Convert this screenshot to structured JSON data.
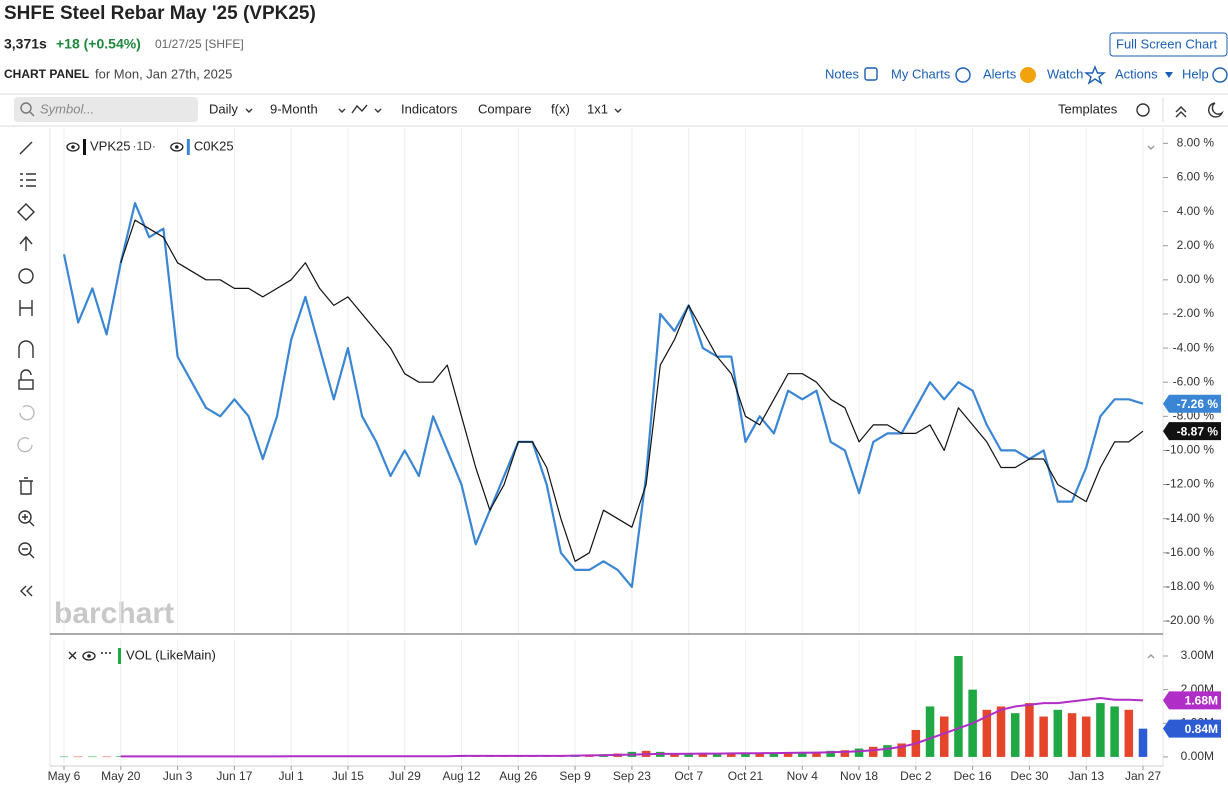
{
  "header": {
    "title": "SHFE Steel Rebar May '25 (VPK25)",
    "price": "3,371s",
    "change": "+18 (+0.54%)",
    "date_exchange": "01/27/25 [SHFE]",
    "full_screen": "Full Screen Chart",
    "panel_label": "CHART PANEL",
    "panel_date": "for Mon, Jan 27th, 2025"
  },
  "nav": [
    "Notes",
    "My Charts",
    "Alerts",
    "Watch",
    "Actions",
    "Help"
  ],
  "toolbar": {
    "symbol_placeholder": "Symbol...",
    "items": [
      "Daily",
      "9-Month",
      "Indicators",
      "Compare",
      "f(x)",
      "1x1"
    ],
    "templates": "Templates"
  },
  "watermark": "barchart",
  "chart_data": [
    {
      "type": "line",
      "interval": "·1D·",
      "categories": [
        "May 6",
        null,
        null,
        null,
        "May 20",
        null,
        null,
        null,
        "Jun 3",
        null,
        null,
        null,
        "Jun 17",
        null,
        null,
        null,
        "Jul 1",
        null,
        null,
        null,
        "Jul 15",
        null,
        null,
        null,
        "Jul 29",
        null,
        null,
        null,
        "Aug 12",
        null,
        null,
        null,
        "Aug 26",
        null,
        null,
        null,
        "Sep 9",
        null,
        null,
        null,
        "Sep 23",
        null,
        null,
        null,
        "Oct 7",
        null,
        null,
        null,
        "Oct 21",
        null,
        null,
        null,
        "Nov 4",
        null,
        null,
        null,
        "Nov 18",
        null,
        null,
        null,
        "Dec 2",
        null,
        null,
        null,
        "Dec 16",
        null,
        null,
        null,
        "Dec 30",
        null,
        null,
        null,
        "Jan 13",
        null,
        null,
        null,
        "Jan 27"
      ],
      "series": [
        {
          "name": "VPK25",
          "color": "#111111",
          "values": [
            null,
            null,
            null,
            null,
            1.0,
            3.5,
            3.0,
            2.5,
            1.0,
            0.5,
            0.0,
            0.0,
            -0.5,
            -0.5,
            -1.0,
            -0.5,
            0.0,
            1.0,
            -0.5,
            -1.5,
            -1.0,
            -2.0,
            -3.0,
            -4.0,
            -5.5,
            -6.0,
            -6.0,
            -5.0,
            -8.0,
            -11.0,
            -13.5,
            -12.0,
            -9.5,
            -9.5,
            -11.0,
            -14.0,
            -16.5,
            -16.0,
            -13.5,
            -14.0,
            -14.5,
            -12.0,
            -5.0,
            -3.5,
            -1.5,
            -3.0,
            -4.5,
            -5.5,
            -8.0,
            -8.5,
            -7.0,
            -5.5,
            -5.5,
            -6.0,
            -7.0,
            -7.5,
            -9.5,
            -8.5,
            -8.5,
            -9.0,
            -9.0,
            -8.5,
            -10.0,
            -7.5,
            -8.5,
            -9.5,
            -11.0,
            -11.0,
            -10.5,
            -10.5,
            -12.0,
            -12.5,
            -13.0,
            -11.0,
            -9.5,
            -9.5,
            -8.87
          ],
          "value_labels": [
            null,
            null,
            null,
            null,
            null,
            null,
            null,
            null,
            null,
            null,
            null,
            null,
            null,
            null,
            null,
            null,
            null,
            null,
            null,
            null,
            null,
            null,
            null,
            null,
            null,
            null,
            null,
            null,
            null,
            null,
            null,
            null,
            null,
            null,
            null,
            null,
            null,
            null,
            null,
            null,
            null,
            null,
            null,
            null,
            null,
            null,
            null,
            null,
            null,
            null,
            null,
            null,
            null,
            null,
            null,
            null,
            null,
            null,
            null,
            null,
            null,
            null,
            null,
            null,
            null,
            null,
            null,
            null,
            null,
            null,
            null,
            null,
            null,
            null,
            null,
            null,
            "-8.87 %"
          ]
        },
        {
          "name": "C0K25",
          "color": "#3a86d4",
          "values": [
            1.5,
            -2.5,
            -0.5,
            -3.2,
            1.0,
            4.5,
            2.5,
            3.0,
            -4.5,
            -6.0,
            -7.5,
            -8.0,
            -7.0,
            -8.0,
            -10.5,
            -8.0,
            -3.5,
            -1.0,
            -4.0,
            -7.0,
            -4.0,
            -8.0,
            -9.5,
            -11.5,
            -10.0,
            -11.5,
            -8.0,
            -10.0,
            -12.0,
            -15.5,
            -13.5,
            -11.5,
            -9.5,
            -9.5,
            -12.0,
            -16.0,
            -17.0,
            -17.0,
            -16.5,
            -17.0,
            -18.0,
            -11.5,
            -2.0,
            -3.0,
            -1.5,
            -4.0,
            -4.5,
            -4.5,
            -9.5,
            -8.0,
            -9.0,
            -6.5,
            -7.0,
            -6.5,
            -9.5,
            -10.0,
            -12.5,
            -9.5,
            -9.0,
            -9.0,
            -7.5,
            -6.0,
            -7.0,
            -6.0,
            -6.5,
            -8.5,
            -10.0,
            -10.0,
            -10.5,
            -10.0,
            -13.0,
            -13.0,
            -11.0,
            -8.0,
            -7.0,
            -7.0,
            -7.26
          ],
          "value_labels": [
            null,
            null,
            null,
            null,
            null,
            null,
            null,
            null,
            null,
            null,
            null,
            null,
            null,
            null,
            null,
            null,
            null,
            null,
            null,
            null,
            null,
            null,
            null,
            null,
            null,
            null,
            null,
            null,
            null,
            null,
            null,
            null,
            null,
            null,
            null,
            null,
            null,
            null,
            null,
            null,
            null,
            null,
            null,
            null,
            null,
            null,
            null,
            null,
            null,
            null,
            null,
            null,
            null,
            null,
            null,
            null,
            null,
            null,
            null,
            null,
            null,
            null,
            null,
            null,
            null,
            null,
            null,
            null,
            null,
            null,
            null,
            null,
            null,
            null,
            null,
            null,
            "-7.26 %"
          ]
        }
      ],
      "ylim": [
        -20.7,
        8.9
      ],
      "yticks": [
        {
          "value": 8,
          "label": "8.00 %"
        },
        {
          "value": 6,
          "label": "6.00 %"
        },
        {
          "value": 4,
          "label": "4.00 %"
        },
        {
          "value": 2,
          "label": "2.00 %"
        },
        {
          "value": 0,
          "label": "0.00 %"
        },
        {
          "value": -2,
          "label": "-2.00 %"
        },
        {
          "value": -4,
          "label": "-4.00 %"
        },
        {
          "value": -6,
          "label": "-6.00 %"
        },
        {
          "value": -8,
          "label": "-8.00 %"
        },
        {
          "value": -10,
          "label": "-10.00 %"
        },
        {
          "value": -12,
          "label": "-12.00 %"
        },
        {
          "value": -14,
          "label": "-14.00 %"
        },
        {
          "value": -16,
          "label": "-16.00 %"
        },
        {
          "value": -18,
          "label": "-18.00 %"
        },
        {
          "value": -20,
          "label": "-20.00 %"
        }
      ],
      "xgrid": true
    },
    {
      "type": "bar",
      "series": [
        {
          "name": "VOL (LikeMain)",
          "color": "#1fa843",
          "colors": [
            "#1fa843",
            "#e5452b",
            "#1fa843",
            "#e5452b",
            "#1fa843",
            "#e5452b",
            "#1fa843",
            "#e5452b",
            "#1fa843",
            "#e5452b",
            "#1fa843",
            "#e5452b",
            "#1fa843",
            "#e5452b",
            "#1fa843",
            "#e5452b",
            "#1fa843",
            "#e5452b",
            "#1fa843",
            "#e5452b",
            "#1fa843",
            "#e5452b",
            "#1fa843",
            "#e5452b",
            "#1fa843",
            "#e5452b",
            "#1fa843",
            "#e5452b",
            "#1fa843",
            "#e5452b",
            "#1fa843",
            "#e5452b",
            "#1fa843",
            "#e5452b",
            "#1fa843",
            "#e5452b",
            "#1fa843",
            "#e5452b",
            "#1fa843",
            "#e5452b",
            "#1fa843",
            "#e5452b",
            "#1fa843",
            "#e5452b",
            "#1fa843",
            "#e5452b",
            "#1fa843",
            "#e5452b",
            "#1fa843",
            "#e5452b",
            "#1fa843",
            "#e5452b",
            "#1fa843",
            "#e5452b",
            "#1fa843",
            "#e5452b",
            "#1fa843",
            "#e5452b",
            "#1fa843",
            "#e5452b",
            "#e5452b",
            "#1fa843",
            "#e5452b",
            "#1fa843",
            "#1fa843",
            "#e5452b",
            "#e5452b",
            "#1fa843",
            "#e5452b",
            "#e5452b",
            "#1fa843",
            "#e5452b",
            "#e5452b",
            "#1fa843",
            "#1fa843",
            "#e5452b",
            "#2d5bd3"
          ],
          "values": [
            10000,
            10000,
            10000,
            10000,
            20000,
            20000,
            20000,
            20000,
            20000,
            20000,
            20000,
            20000,
            20000,
            20000,
            20000,
            20000,
            30000,
            30000,
            30000,
            30000,
            30000,
            30000,
            30000,
            30000,
            30000,
            30000,
            30000,
            30000,
            40000,
            40000,
            40000,
            40000,
            40000,
            40000,
            40000,
            40000,
            60000,
            70000,
            80000,
            100000,
            150000,
            180000,
            150000,
            100000,
            100000,
            120000,
            100000,
            100000,
            120000,
            100000,
            120000,
            130000,
            150000,
            150000,
            180000,
            200000,
            250000,
            300000,
            350000,
            400000,
            800000,
            1500000,
            1200000,
            3000000,
            2000000,
            1400000,
            1500000,
            1300000,
            1600000,
            1200000,
            1400000,
            1300000,
            1200000,
            1600000,
            1500000,
            1400000,
            840000
          ],
          "value_labels": [
            null,
            null,
            null,
            null,
            null,
            null,
            null,
            null,
            null,
            null,
            null,
            null,
            null,
            null,
            null,
            null,
            null,
            null,
            null,
            null,
            null,
            null,
            null,
            null,
            null,
            null,
            null,
            null,
            null,
            null,
            null,
            null,
            null,
            null,
            null,
            null,
            null,
            null,
            null,
            null,
            null,
            null,
            null,
            null,
            null,
            null,
            null,
            null,
            null,
            null,
            null,
            null,
            null,
            null,
            null,
            null,
            null,
            null,
            null,
            null,
            null,
            null,
            null,
            null,
            null,
            null,
            null,
            null,
            null,
            null,
            null,
            null,
            null,
            null,
            null,
            null,
            "0.84M"
          ],
          "label_color": "#2d5bd3"
        },
        {
          "type": "line",
          "color": "#b02ec7",
          "values": [
            null,
            null,
            null,
            null,
            15000,
            15000,
            15000,
            15000,
            15000,
            15000,
            15000,
            15000,
            15000,
            15000,
            15000,
            15000,
            20000,
            20000,
            20000,
            20000,
            20000,
            20000,
            20000,
            20000,
            20000,
            20000,
            20000,
            20000,
            30000,
            30000,
            30000,
            30000,
            30000,
            30000,
            30000,
            30000,
            40000,
            45000,
            50000,
            60000,
            70000,
            80000,
            90000,
            90000,
            95000,
            100000,
            100000,
            105000,
            110000,
            110000,
            115000,
            120000,
            125000,
            130000,
            140000,
            150000,
            170000,
            200000,
            240000,
            300000,
            400000,
            550000,
            700000,
            850000,
            1000000,
            1200000,
            1400000,
            1500000,
            1550000,
            1600000,
            1600000,
            1650000,
            1700000,
            1750000,
            1700000,
            1700000,
            1680000
          ],
          "value_labels": [
            null,
            null,
            null,
            null,
            null,
            null,
            null,
            null,
            null,
            null,
            null,
            null,
            null,
            null,
            null,
            null,
            null,
            null,
            null,
            null,
            null,
            null,
            null,
            null,
            null,
            null,
            null,
            null,
            null,
            null,
            null,
            null,
            null,
            null,
            null,
            null,
            null,
            null,
            null,
            null,
            null,
            null,
            null,
            null,
            null,
            null,
            null,
            null,
            null,
            null,
            null,
            null,
            null,
            null,
            null,
            null,
            null,
            null,
            null,
            null,
            null,
            null,
            null,
            null,
            null,
            null,
            null,
            null,
            null,
            null,
            null,
            null,
            null,
            null,
            null,
            null,
            "1.68M"
          ]
        }
      ],
      "ylim": [
        -240000,
        3475000
      ],
      "yticks": [
        {
          "value": 0,
          "label": "0.00M"
        },
        {
          "value": 1000000,
          "label": "1.00M"
        },
        {
          "value": 2000000,
          "label": "2.00M"
        },
        {
          "value": 3000000,
          "label": "3.00M"
        }
      ],
      "xgrid": true
    }
  ]
}
